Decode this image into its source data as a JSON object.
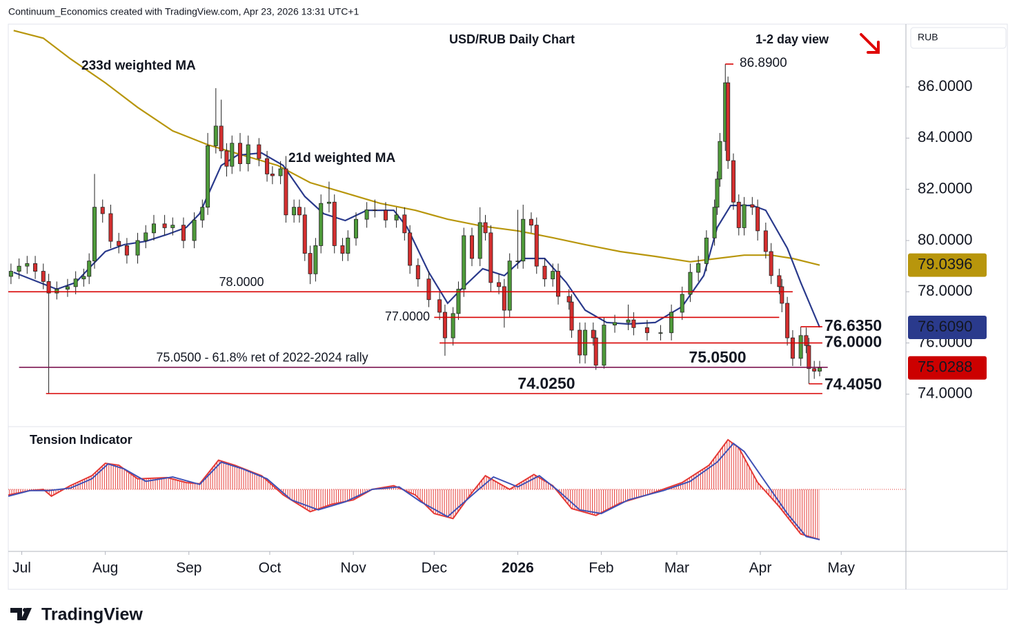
{
  "header": "Continuum_Economics created with TradingView.com, Apr 23, 2026 13:31 UTC+1",
  "footer": "TradingView",
  "chart_data": [
    {
      "type": "candlestick",
      "title": "USD/RUB Daily Chart",
      "subtitle": "1-2 day view",
      "currency": "RUB",
      "up_color": "#4e9a3a",
      "down_color": "#d32f2f",
      "x": [
        -4,
        -1,
        2,
        5,
        8,
        10,
        13,
        17,
        20,
        23,
        25,
        27,
        30,
        33,
        36,
        39,
        43,
        46,
        49,
        53,
        56,
        60,
        64,
        67,
        69,
        72,
        74,
        76,
        78,
        81,
        84,
        88,
        91,
        93,
        96,
        98,
        101,
        103,
        105,
        107,
        109,
        111,
        114,
        116,
        119,
        121,
        124,
        128,
        131,
        135,
        139,
        142,
        144,
        147,
        151,
        155,
        157,
        160,
        162,
        164,
        167,
        170,
        172,
        174,
        177,
        179,
        181,
        184,
        186,
        189,
        191,
        194,
        197,
        199,
        203,
        204,
        207,
        209,
        212,
        213,
        216,
        220,
        225,
        227,
        232,
        237,
        241,
        245,
        248,
        251,
        254,
        257,
        258,
        259,
        261,
        262,
        264,
        266,
        268,
        271,
        273,
        276,
        278,
        281,
        282,
        284,
        286,
        289,
        291,
        292,
        294,
        296
      ],
      "open": [
        78.6,
        78.8,
        79.0,
        79.1,
        78.8,
        78.4,
        77.95,
        78.1,
        78.2,
        78.5,
        78.6,
        79.2,
        81.3,
        81.05,
        79.97,
        79.8,
        79.43,
        80.0,
        80.3,
        80.65,
        80.5,
        80.6,
        80.0,
        80.8,
        81.3,
        83.7,
        84.47,
        83.5,
        82.9,
        83.8,
        83.0,
        83.74,
        83.2,
        82.6,
        82.53,
        82.8,
        81.0,
        81.3,
        81.0,
        79.5,
        78.7,
        79.8,
        81.45,
        81.5,
        79.8,
        79.5,
        80.1,
        80.83,
        81.2,
        81.18,
        80.8,
        81.0,
        80.3,
        79.03,
        78.5,
        77.69,
        77.2,
        76.2,
        77.15,
        78.1,
        80.19,
        79.3,
        80.7,
        80.3,
        78.36,
        78.2,
        77.28,
        79.2,
        79.2,
        80.83,
        80.6,
        79.0,
        78.5,
        78.8,
        77.82,
        77.6,
        76.5,
        75.53,
        76.5,
        76.2,
        75.13,
        76.7,
        76.8,
        76.9,
        76.6,
        76.4,
        76.4,
        77.2,
        77.9,
        78.76,
        79.1,
        80.1,
        81.3,
        82.4,
        83.87,
        86.16,
        83.12,
        81.5,
        80.5,
        81.4,
        81.3,
        80.38,
        79.57,
        78.63,
        78.2,
        77.55,
        76.2,
        75.4,
        76.29,
        75.9,
        75.0,
        74.9
      ],
      "high": [
        79.1,
        79.3,
        79.4,
        79.4,
        79.1,
        78.7,
        78.4,
        78.5,
        78.8,
        78.9,
        79.5,
        82.6,
        81.6,
        81.4,
        80.3,
        80.1,
        80.3,
        80.6,
        81.0,
        81.0,
        80.9,
        80.9,
        81.1,
        81.6,
        84.2,
        85.95,
        85.5,
        83.8,
        84.1,
        84.2,
        84.1,
        84.0,
        83.5,
        82.9,
        83.1,
        83.3,
        81.6,
        81.6,
        81.3,
        79.8,
        80.1,
        81.8,
        82.3,
        81.8,
        80.1,
        80.4,
        81.1,
        81.5,
        81.6,
        81.5,
        81.3,
        81.3,
        80.6,
        79.3,
        78.8,
        78.0,
        77.5,
        77.4,
        78.4,
        80.5,
        80.5,
        81.3,
        81.0,
        80.6,
        78.7,
        78.5,
        79.5,
        81.2,
        81.4,
        81.1,
        80.9,
        79.3,
        79.1,
        79.1,
        78.1,
        77.9,
        76.8,
        76.8,
        76.8,
        76.5,
        77.0,
        77.1,
        77.5,
        77.2,
        76.9,
        76.7,
        77.5,
        78.2,
        79.1,
        79.4,
        80.4,
        81.6,
        82.7,
        84.2,
        86.89,
        86.4,
        83.4,
        81.8,
        81.7,
        81.7,
        81.6,
        80.7,
        79.9,
        78.9,
        78.5,
        77.8,
        76.5,
        76.635,
        76.6,
        76.2,
        75.3,
        75.3
      ],
      "low": [
        78.3,
        78.5,
        78.7,
        78.5,
        78.1,
        74.025,
        77.7,
        77.8,
        77.9,
        78.2,
        78.3,
        78.9,
        80.7,
        79.7,
        79.5,
        79.1,
        79.1,
        79.7,
        80.0,
        80.2,
        80.2,
        79.7,
        79.7,
        80.5,
        81.0,
        83.4,
        83.2,
        82.5,
        82.6,
        82.7,
        82.7,
        82.9,
        82.3,
        82.2,
        82.2,
        80.7,
        80.7,
        80.7,
        79.2,
        78.3,
        78.4,
        79.5,
        81.1,
        79.5,
        79.2,
        79.2,
        79.8,
        80.5,
        80.9,
        80.5,
        80.5,
        80.0,
        78.7,
        78.2,
        77.4,
        76.9,
        75.5,
        75.9,
        76.9,
        77.8,
        79.0,
        79.0,
        80.0,
        78.0,
        77.9,
        76.6,
        77.0,
        78.9,
        78.9,
        80.3,
        78.7,
        78.2,
        78.2,
        77.5,
        77.3,
        76.2,
        75.2,
        75.2,
        75.9,
        74.95,
        75.0,
        76.4,
        76.5,
        76.3,
        76.1,
        76.1,
        76.1,
        76.9,
        77.6,
        78.4,
        78.8,
        79.8,
        81.0,
        82.1,
        83.5,
        82.8,
        81.2,
        80.2,
        80.2,
        81.0,
        80.0,
        79.3,
        78.3,
        77.9,
        77.2,
        75.9,
        75.1,
        75.1,
        75.6,
        74.405,
        74.6,
        74.7
      ],
      "close": [
        78.8,
        79.0,
        79.1,
        78.8,
        78.4,
        77.95,
        78.1,
        78.2,
        78.5,
        78.6,
        79.2,
        81.3,
        81.05,
        79.97,
        79.8,
        79.43,
        80.0,
        80.3,
        80.65,
        80.5,
        80.6,
        80.0,
        80.8,
        81.3,
        83.7,
        84.47,
        83.5,
        82.9,
        83.8,
        83.0,
        83.74,
        83.2,
        82.6,
        82.53,
        82.8,
        81.0,
        81.3,
        81.0,
        79.5,
        78.7,
        79.8,
        81.45,
        81.5,
        79.8,
        79.5,
        80.1,
        80.83,
        81.2,
        81.18,
        80.8,
        81.0,
        80.3,
        79.03,
        78.5,
        77.69,
        77.2,
        76.2,
        77.15,
        78.1,
        80.19,
        79.3,
        80.7,
        80.3,
        78.36,
        78.2,
        77.28,
        79.2,
        79.2,
        80.83,
        80.6,
        79.0,
        78.5,
        78.8,
        77.82,
        77.6,
        76.5,
        75.53,
        76.5,
        76.2,
        75.13,
        76.7,
        76.8,
        76.9,
        76.6,
        76.4,
        76.4,
        77.2,
        77.9,
        78.76,
        79.1,
        80.1,
        81.3,
        82.4,
        83.87,
        86.16,
        83.12,
        81.5,
        80.5,
        81.4,
        81.3,
        80.38,
        79.57,
        78.63,
        78.2,
        77.55,
        76.2,
        75.4,
        76.29,
        75.9,
        75.0,
        74.9,
        75.0288
      ],
      "close_label": "75.0288",
      "close_label_color": "#cc0000",
      "series": [
        {
          "name": "233d weighted MA",
          "color": "#b8960c",
          "last_label": "79.0396",
          "x": [
            -3,
            8,
            18,
            31,
            43,
            56,
            69,
            82,
            95,
            107,
            120,
            133,
            146,
            158,
            171,
            184,
            197,
            209,
            222,
            235,
            248,
            258,
            268,
            278,
            286,
            296
          ],
          "values": [
            88.2,
            87.9,
            87.1,
            86.16,
            85.2,
            84.28,
            83.74,
            83.33,
            82.93,
            82.26,
            81.86,
            81.45,
            81.18,
            80.83,
            80.56,
            80.38,
            80.11,
            79.84,
            79.57,
            79.38,
            79.17,
            79.3,
            79.43,
            79.43,
            79.3,
            79.0396
          ]
        },
        {
          "name": "21d weighted MA",
          "color": "#2a3a8c",
          "last_label": "76.6090",
          "x": [
            -3,
            13,
            20,
            26,
            31,
            38,
            46,
            54,
            61,
            66,
            70,
            74,
            80,
            89,
            97,
            105,
            112,
            120,
            128,
            138,
            143,
            151,
            158,
            163,
            171,
            179,
            186,
            194,
            202,
            209,
            217,
            225,
            235,
            245,
            253,
            258,
            263,
            271,
            276,
            284,
            289,
            296
          ],
          "values": [
            78.76,
            78.1,
            78.36,
            79.03,
            79.57,
            79.84,
            79.97,
            80.24,
            80.51,
            81.05,
            81.99,
            82.93,
            83.33,
            83.42,
            82.93,
            81.72,
            81.05,
            80.78,
            81.18,
            81.18,
            80.51,
            78.76,
            77.55,
            78.1,
            78.9,
            78.63,
            79.3,
            79.3,
            78.36,
            77.28,
            76.8,
            76.74,
            76.8,
            77.42,
            78.63,
            80.51,
            81.37,
            81.37,
            81.18,
            79.7,
            78.36,
            76.609
          ]
        }
      ],
      "levels": [
        {
          "value": 86.89,
          "label": "86.8900",
          "start": 261,
          "end": 264,
          "color": "#d80000"
        },
        {
          "value": 78,
          "label": "78.0000",
          "start": -5,
          "end": 286,
          "color": "#d80000"
        },
        {
          "value": 77,
          "label": "77.0000",
          "start": 153,
          "end": 281,
          "color": "#d80000"
        },
        {
          "value": 76.635,
          "label": "76.6350",
          "start": 289,
          "end": 297,
          "color": "#d80000"
        },
        {
          "value": 76,
          "label": "76.0000",
          "start": 155,
          "end": 297,
          "color": "#d80000"
        },
        {
          "value": 75.05,
          "label": "75.0500",
          "note": "75.0500 - 61.8% ret of 2022-2024 rally",
          "start": -1,
          "end": 299,
          "color": "#7b1450"
        },
        {
          "value": 74.405,
          "label": "74.4050",
          "start": 292,
          "end": 297,
          "color": "#d80000"
        },
        {
          "value": 74.025,
          "label": "74.0250",
          "start": 9,
          "end": 297,
          "color": "#d80000"
        }
      ],
      "xlim": [
        -5,
        328
      ],
      "xticks": [
        {
          "value": 0,
          "label": "Jul"
        },
        {
          "value": 31,
          "label": "Aug"
        },
        {
          "value": 62,
          "label": "Sep"
        },
        {
          "value": 92,
          "label": "Oct"
        },
        {
          "value": 123,
          "label": "Nov"
        },
        {
          "value": 153,
          "label": "Dec"
        },
        {
          "value": 184,
          "label": "2026"
        },
        {
          "value": 215,
          "label": "Feb"
        },
        {
          "value": 243,
          "label": "Mar"
        },
        {
          "value": 274,
          "label": "Apr"
        },
        {
          "value": 304,
          "label": "May"
        }
      ],
      "ylim": [
        72.76,
        88.45
      ],
      "yticks": [
        {
          "value": 74,
          "label": "74.0000"
        },
        {
          "value": 76,
          "label": "76.0000"
        },
        {
          "value": 78,
          "label": "78.0000"
        },
        {
          "value": 80,
          "label": "80.0000"
        },
        {
          "value": 82,
          "label": "82.0000"
        },
        {
          "value": 84,
          "label": "84.0000"
        },
        {
          "value": 86,
          "label": "86.0000"
        }
      ]
    },
    {
      "type": "line",
      "title": "Tension Indicator",
      "xlim": [
        -5,
        328
      ],
      "ylim": [
        -1,
        1
      ],
      "series": [
        {
          "color": "#e53935",
          "x": [
            -5,
            3,
            8,
            11,
            18,
            26,
            31,
            36,
            43,
            54,
            61,
            66,
            73,
            79,
            89,
            97,
            107,
            115,
            123,
            130,
            138,
            146,
            153,
            160,
            166,
            172,
            181,
            190,
            197,
            204,
            213,
            222,
            232,
            245,
            255,
            262,
            266,
            273,
            281,
            289,
            296
          ],
          "values": [
            -0.09,
            -0.02,
            0,
            -0.11,
            0.06,
            0.22,
            0.42,
            0.39,
            0.17,
            0.19,
            0.11,
            0.09,
            0.47,
            0.39,
            0.22,
            -0.09,
            -0.36,
            -0.24,
            -0.17,
            0,
            0.06,
            -0.09,
            -0.39,
            -0.47,
            -0.11,
            0.22,
            0,
            0.24,
            0.06,
            -0.31,
            -0.42,
            -0.22,
            -0.09,
            0.11,
            0.39,
            0.8,
            0.67,
            0.11,
            -0.28,
            -0.72,
            -0.81
          ]
        },
        {
          "color": "#3f51b5",
          "x": [
            -5,
            3,
            10,
            18,
            26,
            32,
            38,
            46,
            56,
            66,
            74,
            82,
            91,
            100,
            110,
            120,
            130,
            140,
            148,
            158,
            169,
            175,
            184,
            192,
            199,
            207,
            215,
            225,
            238,
            248,
            258,
            264,
            268,
            276,
            284,
            291,
            296
          ],
          "values": [
            -0.11,
            -0.02,
            -0.02,
            0.02,
            0.17,
            0.41,
            0.33,
            0.13,
            0.2,
            0.08,
            0.44,
            0.33,
            0.17,
            -0.17,
            -0.33,
            -0.2,
            0,
            0.04,
            -0.2,
            -0.44,
            -0.02,
            0.2,
            0.04,
            0.22,
            -0.02,
            -0.33,
            -0.39,
            -0.17,
            -0.02,
            0.13,
            0.44,
            0.74,
            0.61,
            0.11,
            -0.39,
            -0.76,
            -0.81
          ]
        }
      ]
    }
  ]
}
